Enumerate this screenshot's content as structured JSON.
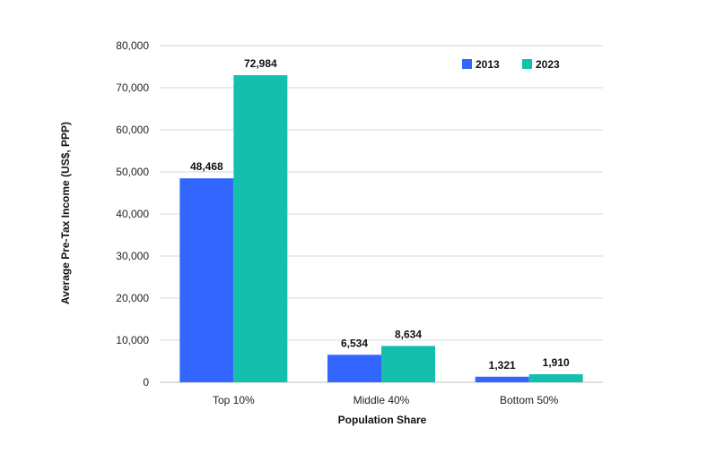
{
  "chart_data": {
    "type": "bar",
    "title": "",
    "xlabel": "Population Share",
    "ylabel": "Average Pre-Tax Income (US$, PPP)",
    "categories": [
      "Top 10%",
      "Middle 40%",
      "Bottom 50%"
    ],
    "series": [
      {
        "name": "2013",
        "color": "#3366ff",
        "values": [
          48468,
          6534,
          1321
        ],
        "labels": [
          "48,468",
          "6,534",
          "1,321"
        ]
      },
      {
        "name": "2023",
        "color": "#14bfae",
        "values": [
          72984,
          8634,
          1910
        ],
        "labels": [
          "72,984",
          "8,634",
          "1,910"
        ]
      }
    ],
    "ylim": [
      0,
      80000
    ],
    "yticks": [
      0,
      10000,
      20000,
      30000,
      40000,
      50000,
      60000,
      70000,
      80000
    ],
    "ytick_labels": [
      "0",
      "10,000",
      "20,000",
      "30,000",
      "40,000",
      "50,000",
      "60,000",
      "70,000",
      "80,000"
    ],
    "grid": true,
    "legend_position": "top-right"
  }
}
